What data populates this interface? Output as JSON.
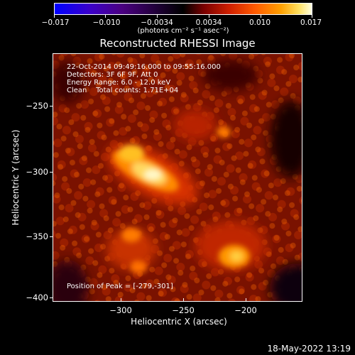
{
  "colorbar": {
    "labels": [
      "−0.017",
      "−0.010",
      "−0.0034",
      "0.0034",
      "0.010",
      "0.017"
    ],
    "unit": "(photons cm⁻² s⁻¹ asec⁻²)"
  },
  "title": "Reconstructed RHESSI Image",
  "info": {
    "line1": "22-Oct-2014 09:49:16.000 to 09:55:16.000",
    "line2": "Detectors: 3F 6F 9F, Att 0",
    "line3": "Energy Range: 6.0 - 12.0 keV",
    "line4": "Clean    Total counts: 1.71E+04"
  },
  "peak": "Position of Peak = [-279,-301]",
  "axes": {
    "x_title": "Heliocentric X (arcsec)",
    "y_title": "Heliocentric Y (arcsec)",
    "x_ticks": [
      "−300",
      "−250",
      "−200"
    ],
    "y_ticks": [
      "−250",
      "−300",
      "−350",
      "−400"
    ]
  },
  "date_stamp": "18-May-2022 13:19",
  "colors": {
    "background": "#000000",
    "text": "#ffffff"
  }
}
